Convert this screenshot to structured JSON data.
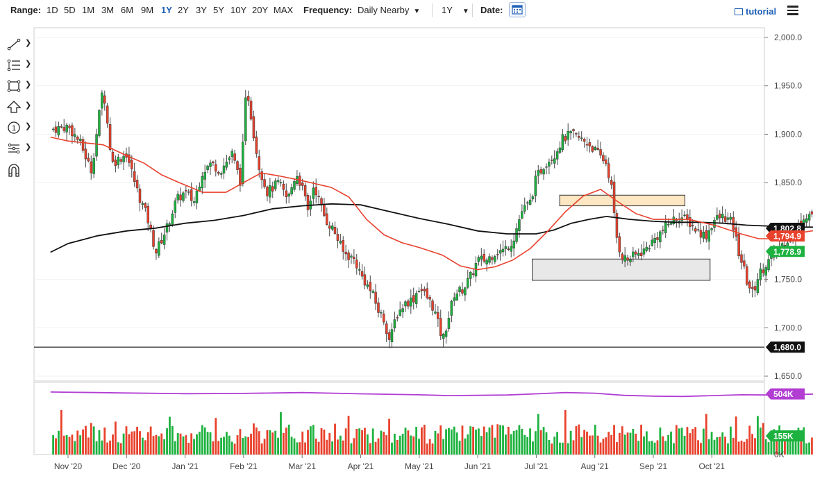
{
  "toolbar": {
    "range_label": "Range:",
    "ranges": [
      "1D",
      "5D",
      "1M",
      "3M",
      "6M",
      "9M",
      "1Y",
      "2Y",
      "3Y",
      "5Y",
      "10Y",
      "20Y",
      "MAX"
    ],
    "active_range": "1Y",
    "frequency_label": "Frequency:",
    "frequency_value": "Daily Nearby",
    "period_value": "1Y",
    "date_label": "Date:",
    "tutorial_label": "tutorial"
  },
  "colors": {
    "up": "#1db23f",
    "down": "#e8412c",
    "ma_short": "#e8412c",
    "ma_long": "#111111",
    "volume_avg": "#b23dd3",
    "accent": "#1d5fb8"
  },
  "drawing_tools": [
    "line-tool-icon",
    "fib-tool-icon",
    "rectangle-tool-icon",
    "arrow-tool-icon",
    "annotation-tool-icon",
    "pattern-tool-icon",
    "magnet-icon"
  ],
  "chart_data": {
    "type": "candlestick",
    "x_ticks": [
      "Nov '20",
      "Dec '20",
      "Jan '21",
      "Feb '21",
      "Mar '21",
      "Apr '21",
      "May '21",
      "Jun '21",
      "Jul '21",
      "Aug '21",
      "Sep '21",
      "Oct '21"
    ],
    "price_ticks": [
      "2,000.0",
      "1,950.0",
      "1,900.0",
      "1,850.0",
      "1,750.0",
      "1,700.0",
      "1,650.0"
    ],
    "price_range": [
      1645,
      2010
    ],
    "volume_range": [
      0,
      600000
    ],
    "volume_ticks": [
      "0K"
    ],
    "price_badges": [
      {
        "label": "1,802.8",
        "value": 1802.8,
        "color": "#111111"
      },
      {
        "label": "1,794.9",
        "value": 1794.9,
        "color": "#e8412c"
      },
      {
        "label": "1,778.9",
        "value": 1778.9,
        "color": "#1db23f"
      },
      {
        "label": "1,680.0",
        "value": 1680.0,
        "color": "#111111"
      }
    ],
    "volume_badges": [
      {
        "label": "504K",
        "value": 504000,
        "color": "#b23dd3"
      },
      {
        "label": "155K",
        "value": 155000,
        "color": "#1db23f"
      }
    ],
    "horizontal_line": 1680.0,
    "zones": [
      {
        "from_month": 8.4,
        "to_month": 10.54,
        "low": 1826,
        "high": 1837,
        "color": "#fde7c2"
      },
      {
        "from_month": 7.93,
        "to_month": 10.97,
        "low": 1749,
        "high": 1771,
        "color": "#e8e8e8"
      }
    ],
    "price_path": [
      [
        -0.3,
        1905
      ],
      [
        0.0,
        1908
      ],
      [
        0.2,
        1892
      ],
      [
        0.4,
        1862
      ],
      [
        0.6,
        1950
      ],
      [
        0.75,
        1870
      ],
      [
        1.0,
        1880
      ],
      [
        1.2,
        1838
      ],
      [
        1.35,
        1815
      ],
      [
        1.5,
        1778
      ],
      [
        1.7,
        1805
      ],
      [
        1.85,
        1832
      ],
      [
        2.0,
        1840
      ],
      [
        2.15,
        1830
      ],
      [
        2.3,
        1862
      ],
      [
        2.45,
        1870
      ],
      [
        2.6,
        1862
      ],
      [
        2.8,
        1880
      ],
      [
        2.95,
        1850
      ],
      [
        3.05,
        1950
      ],
      [
        3.25,
        1870
      ],
      [
        3.4,
        1840
      ],
      [
        3.6,
        1850
      ],
      [
        3.75,
        1832
      ],
      [
        3.9,
        1860
      ],
      [
        4.0,
        1845
      ],
      [
        4.1,
        1820
      ],
      [
        4.2,
        1848
      ],
      [
        4.3,
        1830
      ],
      [
        4.4,
        1812
      ],
      [
        4.55,
        1800
      ],
      [
        4.7,
        1778
      ],
      [
        4.9,
        1770
      ],
      [
        5.0,
        1755
      ],
      [
        5.2,
        1735
      ],
      [
        5.3,
        1718
      ],
      [
        5.4,
        1708
      ],
      [
        5.5,
        1685
      ],
      [
        5.6,
        1712
      ],
      [
        5.75,
        1725
      ],
      [
        5.9,
        1730
      ],
      [
        6.0,
        1742
      ],
      [
        6.15,
        1730
      ],
      [
        6.25,
        1720
      ],
      [
        6.4,
        1687
      ],
      [
        6.5,
        1710
      ],
      [
        6.6,
        1735
      ],
      [
        6.75,
        1740
      ],
      [
        6.9,
        1755
      ],
      [
        7.0,
        1770
      ],
      [
        7.15,
        1770
      ],
      [
        7.3,
        1778
      ],
      [
        7.45,
        1780
      ],
      [
        7.6,
        1790
      ],
      [
        7.75,
        1820
      ],
      [
        7.9,
        1830
      ],
      [
        8.0,
        1855
      ],
      [
        8.15,
        1870
      ],
      [
        8.3,
        1878
      ],
      [
        8.45,
        1895
      ],
      [
        8.6,
        1900
      ],
      [
        8.75,
        1895
      ],
      [
        8.9,
        1890
      ],
      [
        9.05,
        1880
      ],
      [
        9.2,
        1870
      ],
      [
        9.3,
        1840
      ],
      [
        9.35,
        1800
      ],
      [
        9.45,
        1775
      ],
      [
        9.55,
        1770
      ],
      [
        9.7,
        1775
      ],
      [
        9.85,
        1780
      ],
      [
        10.0,
        1790
      ],
      [
        10.15,
        1800
      ],
      [
        10.3,
        1810
      ],
      [
        10.45,
        1815
      ],
      [
        10.6,
        1810
      ],
      [
        10.75,
        1800
      ],
      [
        10.9,
        1795
      ],
      [
        11.05,
        1812
      ],
      [
        11.2,
        1815
      ],
      [
        11.35,
        1808
      ],
      [
        11.4,
        1795
      ],
      [
        11.45,
        1780
      ],
      [
        11.55,
        1760
      ],
      [
        11.6,
        1748
      ],
      [
        11.7,
        1735
      ],
      [
        11.8,
        1755
      ],
      [
        11.95,
        1768
      ],
      [
        12.1,
        1778
      ],
      [
        12.25,
        1790
      ],
      [
        12.4,
        1795
      ],
      [
        12.55,
        1815
      ],
      [
        12.7,
        1818
      ],
      [
        12.8,
        1812
      ],
      [
        12.9,
        1820
      ],
      [
        13.0,
        1825
      ],
      [
        13.05,
        1812
      ],
      [
        13.15,
        1795
      ],
      [
        13.3,
        1790
      ],
      [
        13.45,
        1800
      ],
      [
        13.55,
        1790
      ],
      [
        13.65,
        1770
      ],
      [
        13.75,
        1752
      ],
      [
        13.85,
        1760
      ],
      [
        13.95,
        1770
      ],
      [
        14.05,
        1778.9
      ]
    ],
    "ma_short": [
      [
        -0.3,
        1897
      ],
      [
        0.0,
        1893
      ],
      [
        0.3,
        1891
      ],
      [
        0.6,
        1889
      ],
      [
        1.0,
        1878
      ],
      [
        1.3,
        1870
      ],
      [
        1.6,
        1858
      ],
      [
        1.9,
        1850
      ],
      [
        2.3,
        1840
      ],
      [
        2.7,
        1840
      ],
      [
        3.0,
        1850
      ],
      [
        3.3,
        1860
      ],
      [
        3.6,
        1857
      ],
      [
        4.0,
        1852
      ],
      [
        4.5,
        1845
      ],
      [
        4.8,
        1835
      ],
      [
        5.1,
        1812
      ],
      [
        5.4,
        1796
      ],
      [
        5.7,
        1788
      ],
      [
        6.0,
        1783
      ],
      [
        6.4,
        1775
      ],
      [
        6.7,
        1764
      ],
      [
        7.0,
        1760
      ],
      [
        7.3,
        1763
      ],
      [
        7.6,
        1770
      ],
      [
        7.9,
        1782
      ],
      [
        8.2,
        1800
      ],
      [
        8.5,
        1820
      ],
      [
        8.8,
        1836
      ],
      [
        9.1,
        1843
      ],
      [
        9.4,
        1830
      ],
      [
        9.7,
        1818
      ],
      [
        10.0,
        1812
      ],
      [
        10.3,
        1812
      ],
      [
        10.6,
        1812
      ],
      [
        10.9,
        1808
      ],
      [
        11.1,
        1805
      ],
      [
        11.5,
        1797
      ],
      [
        11.8,
        1792
      ],
      [
        12.1,
        1792
      ],
      [
        12.4,
        1797
      ],
      [
        12.7,
        1800
      ],
      [
        13.0,
        1802
      ],
      [
        13.3,
        1800
      ],
      [
        13.6,
        1798
      ],
      [
        13.9,
        1795
      ],
      [
        14.05,
        1794.9
      ]
    ],
    "ma_long": [
      [
        -0.3,
        1778
      ],
      [
        0.0,
        1787
      ],
      [
        0.5,
        1795
      ],
      [
        1.0,
        1800
      ],
      [
        1.5,
        1803
      ],
      [
        2.0,
        1808
      ],
      [
        2.5,
        1811
      ],
      [
        3.0,
        1816
      ],
      [
        3.5,
        1823
      ],
      [
        4.0,
        1826
      ],
      [
        4.5,
        1828
      ],
      [
        5.0,
        1827
      ],
      [
        5.5,
        1820
      ],
      [
        6.0,
        1813
      ],
      [
        6.5,
        1807
      ],
      [
        7.0,
        1800
      ],
      [
        7.5,
        1797
      ],
      [
        8.0,
        1797
      ],
      [
        8.3,
        1801
      ],
      [
        8.6,
        1808
      ],
      [
        8.9,
        1812
      ],
      [
        9.2,
        1815
      ],
      [
        9.6,
        1812
      ],
      [
        10.0,
        1810
      ],
      [
        10.4,
        1809
      ],
      [
        10.8,
        1809
      ],
      [
        11.2,
        1808
      ],
      [
        11.6,
        1806
      ],
      [
        12.0,
        1805
      ],
      [
        12.4,
        1804
      ],
      [
        12.8,
        1804
      ],
      [
        13.2,
        1804
      ],
      [
        13.6,
        1804
      ],
      [
        14.05,
        1802.8
      ]
    ],
    "volume_avg": [
      [
        -0.3,
        520000
      ],
      [
        0.5,
        515000
      ],
      [
        1.0,
        512000
      ],
      [
        2.0,
        506000
      ],
      [
        3.0,
        508000
      ],
      [
        3.5,
        512000
      ],
      [
        4.0,
        515000
      ],
      [
        5.0,
        505000
      ],
      [
        6.0,
        497000
      ],
      [
        6.5,
        490000
      ],
      [
        7.0,
        492000
      ],
      [
        7.5,
        495000
      ],
      [
        8.0,
        505000
      ],
      [
        8.5,
        515000
      ],
      [
        9.0,
        510000
      ],
      [
        9.5,
        492000
      ],
      [
        10.0,
        486000
      ],
      [
        10.5,
        483000
      ],
      [
        11.0,
        490000
      ],
      [
        11.5,
        497000
      ],
      [
        12.0,
        495000
      ],
      [
        12.5,
        500000
      ],
      [
        13.0,
        505000
      ],
      [
        13.5,
        503000
      ],
      [
        14.05,
        504000
      ]
    ]
  }
}
